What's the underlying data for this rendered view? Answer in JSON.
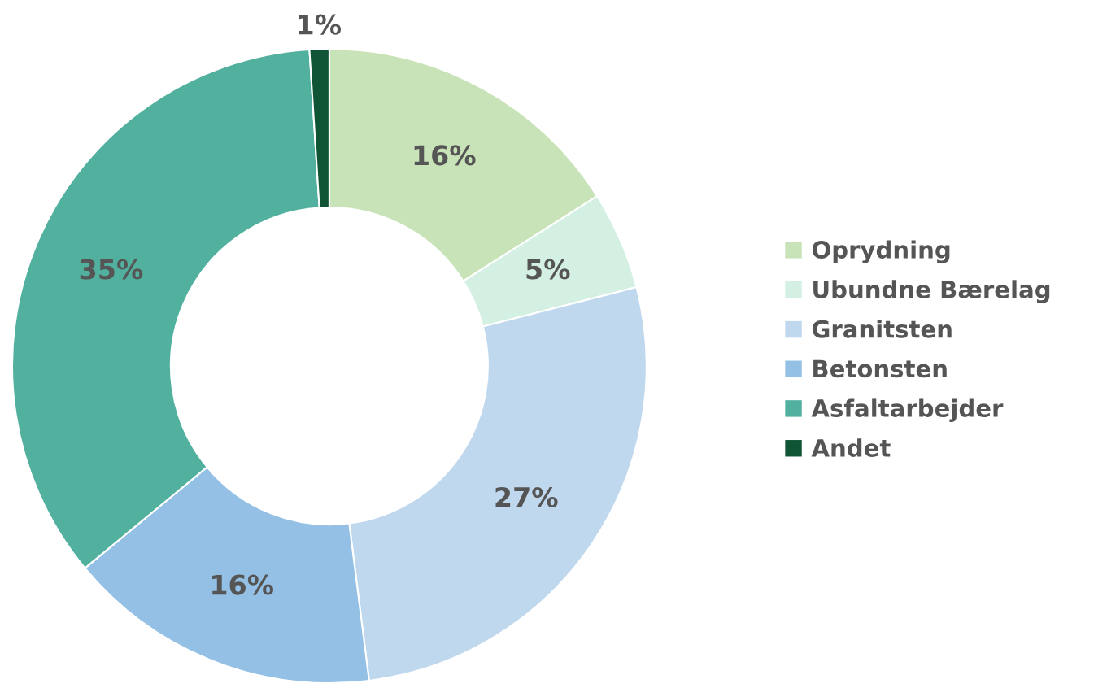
{
  "chart_data": {
    "type": "donut",
    "categories": [
      "Oprydning",
      "Ubundne Bærelag",
      "Granitsten",
      "Betonsten",
      "Asfaltarbejder",
      "Andet"
    ],
    "values": [
      16,
      5,
      27,
      16,
      35,
      1
    ],
    "value_labels": [
      "16%",
      "5%",
      "27%",
      "16%",
      "35%",
      "1%"
    ],
    "colors": [
      "#c9e3b8",
      "#d3f0e3",
      "#c0d8ee",
      "#93c0e4",
      "#52b09f",
      "#0f5535"
    ],
    "legend": "right"
  }
}
